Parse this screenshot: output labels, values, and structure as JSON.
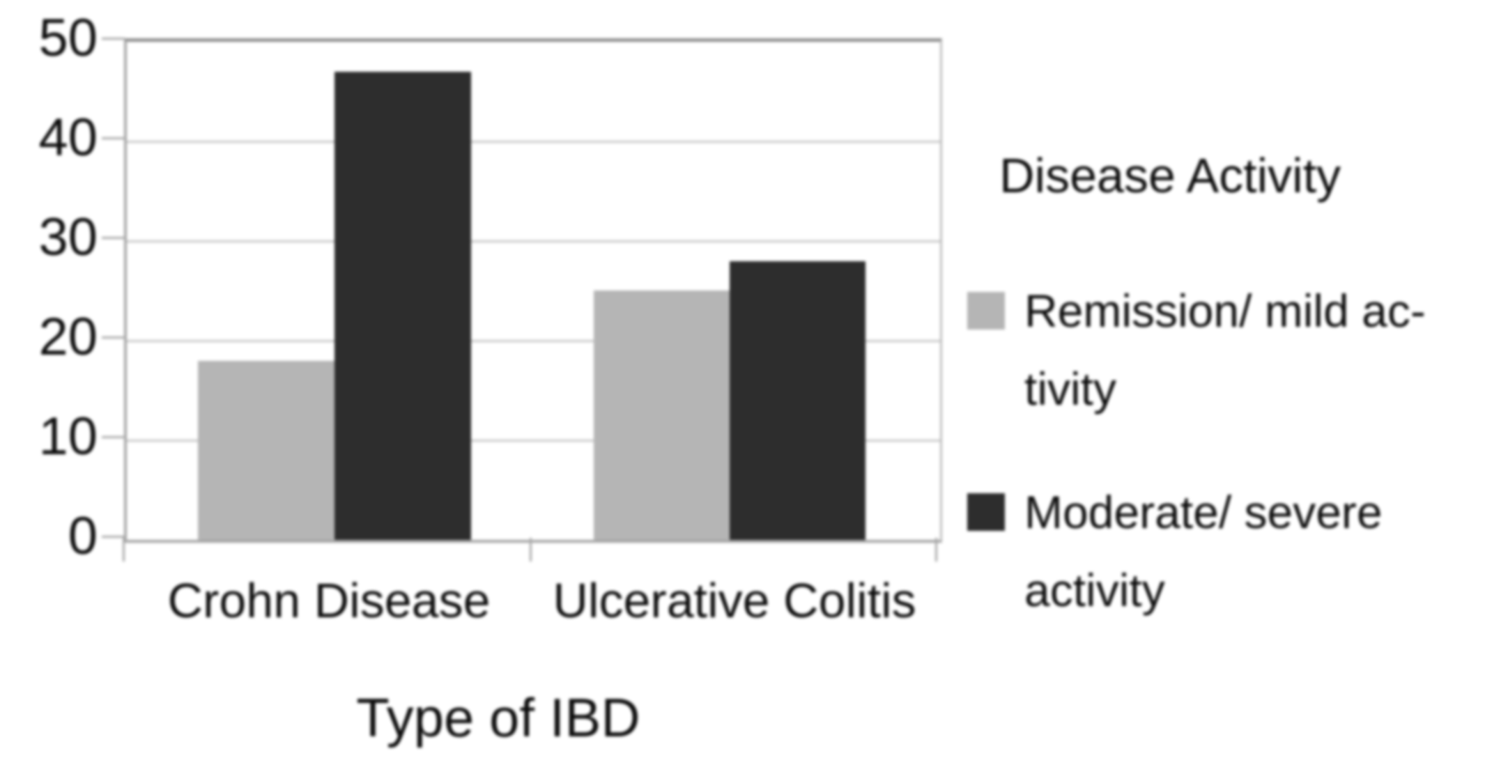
{
  "chart_data": {
    "type": "bar",
    "categories": [
      "Crohn Disease",
      "Ulcerative Colitis"
    ],
    "series": [
      {
        "name": "Remission/ mild activity",
        "color": "#b5b5b5",
        "values": [
          18,
          25
        ]
      },
      {
        "name": "Moderate/ severe activity",
        "color": "#2d2d2d",
        "values": [
          47,
          28
        ]
      }
    ],
    "title": "",
    "xlabel": "Type of IBD",
    "ylabel": "",
    "ylim": [
      0,
      50
    ],
    "yticks": [
      0,
      10,
      20,
      30,
      40,
      50
    ],
    "grid": true,
    "legend_title": "Disease Activity",
    "legend_position": "right"
  },
  "legend": {
    "title": "Disease Activity",
    "entries": [
      {
        "lines": [
          "Remission/ mild ac-",
          "tivity"
        ],
        "color": "#b5b5b5"
      },
      {
        "lines": [
          "Moderate/ severe",
          "activity"
        ],
        "color": "#2d2d2d"
      }
    ]
  },
  "colors": {
    "background": "#ffffff",
    "text": "#0d0d0d",
    "gridline": "#c7c7c7",
    "axis_frame": "#a3a3a3",
    "series_remission": "#b5b5b5",
    "series_moderate": "#2d2d2d"
  }
}
